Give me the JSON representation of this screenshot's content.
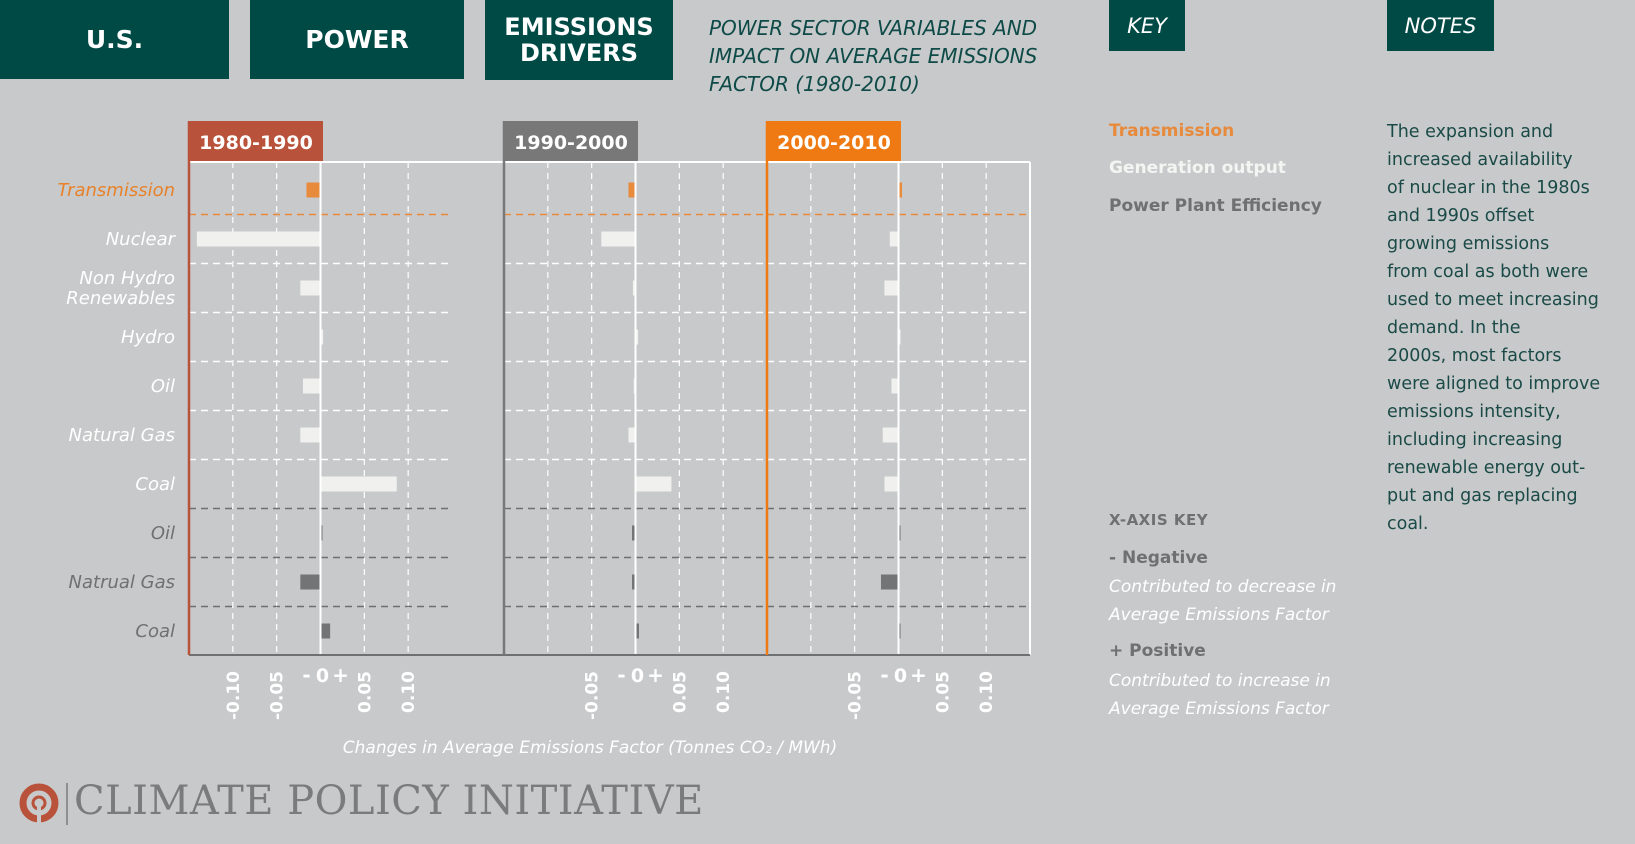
{
  "header": {
    "tab1": "U.S.",
    "tab2": "POWER",
    "tab3_line1": "EMISSIONS",
    "tab3_line2": "DRIVERS",
    "subtitle_line1": "POWER SECTOR VARIABLES AND",
    "subtitle_line2": "IMPACT ON AVERAGE EMISSIONS",
    "subtitle_line3": "FACTOR (1980-2010)",
    "key_label": "KEY",
    "notes_label": "NOTES"
  },
  "key": {
    "transmission": "Transmission",
    "generation": "Generation output",
    "efficiency": "Power Plant Efficiency"
  },
  "notes": {
    "lines": [
      "The expansion and",
      "increased availability",
      "of nuclear in the 1980s",
      "and 1990s offset",
      "growing emissions",
      "from coal as both were",
      "used to meet increasing",
      "demand. In the",
      "2000s, most factors",
      "were aligned to improve",
      "emissions intensity,",
      "including increasing",
      "renewable energy out-",
      "put and gas replacing",
      "coal."
    ]
  },
  "xaxis_key": {
    "title": "X-AXIS KEY",
    "negative": "- Negative",
    "negative_desc1": "Contributed to decrease in",
    "negative_desc2": "Average Emissions Factor",
    "positive": "+ Positive",
    "positive_desc1": "Contributed to increase in",
    "positive_desc2": "Average Emissions Factor"
  },
  "axis_title": "Changes in Average Emissions Factor (Tonnes CO₂ / MWh)",
  "logo": {
    "text": "CLIMATE POLICY INITIATIVE"
  },
  "colors": {
    "transmission": "#e88a3c",
    "generation": "#f0f0ef",
    "efficiency": "#737475",
    "dark_teal": "#004a46",
    "p1": "#b9523a",
    "p2": "#787878",
    "p3": "#ef7a13",
    "background": "#c8c9ca"
  },
  "chart_data": {
    "type": "bar",
    "orientation": "horizontal",
    "panels": [
      "1980-1990",
      "1990-2000",
      "2000-2010"
    ],
    "categories": [
      {
        "label": "Transmission",
        "group": "transmission"
      },
      {
        "label": "Nuclear",
        "group": "generation"
      },
      {
        "label": "Non Hydro Renewables",
        "lines": [
          "Non Hydro",
          "Renewables"
        ],
        "group": "generation"
      },
      {
        "label": "Hydro",
        "group": "generation"
      },
      {
        "label": "Oil",
        "group": "generation"
      },
      {
        "label": "Natural Gas",
        "group": "generation"
      },
      {
        "label": "Coal",
        "group": "generation"
      },
      {
        "label": "Oil",
        "group": "efficiency"
      },
      {
        "label": "Natrual Gas",
        "group": "efficiency"
      },
      {
        "label": "Coal",
        "group": "efficiency"
      }
    ],
    "series": [
      {
        "name": "1980-1990",
        "values": [
          -0.016,
          -0.141,
          -0.023,
          0.003,
          -0.02,
          -0.023,
          0.087,
          0.002,
          -0.023,
          0.011
        ]
      },
      {
        "name": "1990-2000",
        "values": [
          -0.008,
          -0.039,
          -0.003,
          0.003,
          -0.002,
          -0.008,
          0.041,
          -0.004,
          -0.004,
          0.004
        ]
      },
      {
        "name": "2000-2010",
        "values": [
          0.004,
          -0.01,
          -0.016,
          0.002,
          -0.008,
          -0.018,
          -0.016,
          0.002,
          -0.02,
          0.002
        ]
      }
    ],
    "xlim": [
      -0.15,
      0.15
    ],
    "xticks": [
      -0.1,
      -0.05,
      0,
      0.05,
      0.1
    ],
    "xticks_by_panel": [
      [
        "-0.10",
        "-0.05",
        "0.05",
        "0.10"
      ],
      [
        "-0.05",
        "0.05",
        "0.10"
      ],
      [
        "-0.05",
        "0.05",
        "0.10"
      ]
    ],
    "zero_labels": {
      "minus": "-",
      "zero": "0",
      "plus": "+"
    },
    "xlabel": "Changes in Average Emissions Factor (Tonnes CO₂ / MWh)",
    "grid": true
  }
}
